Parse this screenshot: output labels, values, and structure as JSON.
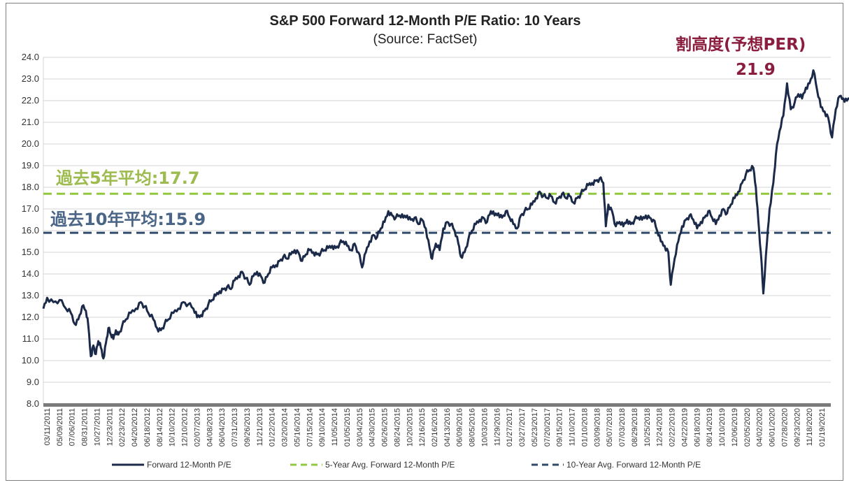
{
  "chart_data": {
    "type": "line",
    "title": "S&P 500 Forward 12-Month P/E Ratio: 10 Years",
    "subtitle": "(Source: FactSet)",
    "xlabel": "",
    "ylabel": "",
    "ylim": [
      8.0,
      24.0
    ],
    "y_ticks": [
      "24.0",
      "23.0",
      "22.0",
      "21.0",
      "20.0",
      "19.0",
      "18.0",
      "17.0",
      "16.0",
      "15.0",
      "14.0",
      "13.0",
      "12.0",
      "11.0",
      "10.0",
      "9.0",
      "8.0"
    ],
    "x_ticks": [
      "03/11/2011",
      "05/09/2011",
      "07/06/2011",
      "08/31/2011",
      "10/27/2011",
      "12/23/2011",
      "02/23/2012",
      "04/20/2012",
      "06/18/2012",
      "08/14/2012",
      "10/10/2012",
      "12/10/2012",
      "02/07/2013",
      "04/08/2013",
      "06/04/2013",
      "07/31/2013",
      "09/26/2013",
      "11/21/2013",
      "01/22/2014",
      "03/20/2014",
      "05/16/2014",
      "07/15/2014",
      "09/10/2014",
      "11/05/2014",
      "01/05/2015",
      "03/04/2015",
      "04/30/2015",
      "06/26/2015",
      "08/24/2015",
      "10/20/2015",
      "12/16/2015",
      "02/16/2016",
      "04/13/2016",
      "06/09/2016",
      "08/05/2016",
      "10/03/2016",
      "11/29/2016",
      "01/27/2017",
      "03/27/2017",
      "05/23/2017",
      "07/20/2017",
      "09/15/2017",
      "11/10/2017",
      "01/10/2018",
      "03/09/2018",
      "05/07/2018",
      "07/03/2018",
      "08/29/2018",
      "10/25/2018",
      "12/24/2018",
      "02/22/2019",
      "04/22/2019",
      "06/18/2019",
      "08/14/2019",
      "10/10/2019",
      "12/06/2019",
      "02/05/2020",
      "04/02/2020",
      "06/01/2020",
      "07/28/2020",
      "09/23/2020",
      "11/18/2020",
      "01/19/2021"
    ],
    "grid": true,
    "legend_position": "bottom",
    "series": [
      {
        "name": "Forward 12-Month P/E",
        "color": "#1c2a4a",
        "style": "solid",
        "points": [
          [
            0,
            12.4
          ],
          [
            0.3,
            12.9
          ],
          [
            0.8,
            12.7
          ],
          [
            1.3,
            12.8
          ],
          [
            1.8,
            12.4
          ],
          [
            2.2,
            12.2
          ],
          [
            2.5,
            11.7
          ],
          [
            2.8,
            11.9
          ],
          [
            3.1,
            12.5
          ],
          [
            3.4,
            12.3
          ],
          [
            3.6,
            11.6
          ],
          [
            3.8,
            10.2
          ],
          [
            4.0,
            10.7
          ],
          [
            4.2,
            10.3
          ],
          [
            4.4,
            10.9
          ],
          [
            4.6,
            10.6
          ],
          [
            4.8,
            10.1
          ],
          [
            5.0,
            10.8
          ],
          [
            5.2,
            11.5
          ],
          [
            5.4,
            11.2
          ],
          [
            5.6,
            11.0
          ],
          [
            5.8,
            11.4
          ],
          [
            6.0,
            11.2
          ],
          [
            6.3,
            11.6
          ],
          [
            6.6,
            11.9
          ],
          [
            7.0,
            12.2
          ],
          [
            7.4,
            12.4
          ],
          [
            7.8,
            12.7
          ],
          [
            8.1,
            12.5
          ],
          [
            8.4,
            12.2
          ],
          [
            8.8,
            11.9
          ],
          [
            9.1,
            11.5
          ],
          [
            9.4,
            11.4
          ],
          [
            9.7,
            11.7
          ],
          [
            10.0,
            11.9
          ],
          [
            10.4,
            12.2
          ],
          [
            10.8,
            12.4
          ],
          [
            11.2,
            12.7
          ],
          [
            11.6,
            12.6
          ],
          [
            12.0,
            12.4
          ],
          [
            12.3,
            12.0
          ],
          [
            12.6,
            12.1
          ],
          [
            12.9,
            12.3
          ],
          [
            13.2,
            12.6
          ],
          [
            13.5,
            12.8
          ],
          [
            13.8,
            13.0
          ],
          [
            14.1,
            13.2
          ],
          [
            14.4,
            13.3
          ],
          [
            14.7,
            13.4
          ],
          [
            15.0,
            13.3
          ],
          [
            15.3,
            13.7
          ],
          [
            15.6,
            13.9
          ],
          [
            15.9,
            14.1
          ],
          [
            16.2,
            13.8
          ],
          [
            16.5,
            13.5
          ],
          [
            16.8,
            13.9
          ],
          [
            17.1,
            14.1
          ],
          [
            17.4,
            13.9
          ],
          [
            17.7,
            13.6
          ],
          [
            18.0,
            14.0
          ],
          [
            18.3,
            14.3
          ],
          [
            18.6,
            14.4
          ],
          [
            18.9,
            14.6
          ],
          [
            19.2,
            14.8
          ],
          [
            19.5,
            14.7
          ],
          [
            19.8,
            14.9
          ],
          [
            20.1,
            15.1
          ],
          [
            20.4,
            15.0
          ],
          [
            20.7,
            14.6
          ],
          [
            21.0,
            14.9
          ],
          [
            21.3,
            15.1
          ],
          [
            21.6,
            15.0
          ],
          [
            21.9,
            14.9
          ],
          [
            22.2,
            15.0
          ],
          [
            22.5,
            15.1
          ],
          [
            22.8,
            15.2
          ],
          [
            23.1,
            15.3
          ],
          [
            23.4,
            15.2
          ],
          [
            23.7,
            15.4
          ],
          [
            24.0,
            15.5
          ],
          [
            24.3,
            15.3
          ],
          [
            24.6,
            15.1
          ],
          [
            24.9,
            15.4
          ],
          [
            25.2,
            15.0
          ],
          [
            25.5,
            14.3
          ],
          [
            25.8,
            15.0
          ],
          [
            26.1,
            15.5
          ],
          [
            26.4,
            15.8
          ],
          [
            26.7,
            15.7
          ],
          [
            27.0,
            16.1
          ],
          [
            27.3,
            16.4
          ],
          [
            27.6,
            16.9
          ],
          [
            27.9,
            16.7
          ],
          [
            28.2,
            16.6
          ],
          [
            28.5,
            16.7
          ],
          [
            28.8,
            16.6
          ],
          [
            29.1,
            16.7
          ],
          [
            29.4,
            16.5
          ],
          [
            29.7,
            16.6
          ],
          [
            30.0,
            16.3
          ],
          [
            30.3,
            16.5
          ],
          [
            30.6,
            16.1
          ],
          [
            30.9,
            15.2
          ],
          [
            31.1,
            14.7
          ],
          [
            31.4,
            15.4
          ],
          [
            31.7,
            15.1
          ],
          [
            32.0,
            16.1
          ],
          [
            32.3,
            16.4
          ],
          [
            32.6,
            16.3
          ],
          [
            32.9,
            16.0
          ],
          [
            33.2,
            15.4
          ],
          [
            33.4,
            14.8
          ],
          [
            33.7,
            15.0
          ],
          [
            34.0,
            15.6
          ],
          [
            34.3,
            16.0
          ],
          [
            34.6,
            16.3
          ],
          [
            34.9,
            16.5
          ],
          [
            35.2,
            16.6
          ],
          [
            35.5,
            16.4
          ],
          [
            35.8,
            16.9
          ],
          [
            36.1,
            16.7
          ],
          [
            36.4,
            16.8
          ],
          [
            36.7,
            16.6
          ],
          [
            37.0,
            16.9
          ],
          [
            37.3,
            16.6
          ],
          [
            37.6,
            16.3
          ],
          [
            37.9,
            16.1
          ],
          [
            38.2,
            16.7
          ],
          [
            38.5,
            16.9
          ],
          [
            38.8,
            17.0
          ],
          [
            39.1,
            17.2
          ],
          [
            39.4,
            17.5
          ],
          [
            39.7,
            17.8
          ],
          [
            40.0,
            17.6
          ],
          [
            40.3,
            17.5
          ],
          [
            40.6,
            17.6
          ],
          [
            40.9,
            17.3
          ],
          [
            41.2,
            17.5
          ],
          [
            41.5,
            17.7
          ],
          [
            41.8,
            17.5
          ],
          [
            42.1,
            17.6
          ],
          [
            42.4,
            17.3
          ],
          [
            42.7,
            17.5
          ],
          [
            43.0,
            17.7
          ],
          [
            43.3,
            17.9
          ],
          [
            43.6,
            18.1
          ],
          [
            43.9,
            18.2
          ],
          [
            44.2,
            18.3
          ],
          [
            44.5,
            18.4
          ],
          [
            44.8,
            18.2
          ],
          [
            45.0,
            16.2
          ],
          [
            45.2,
            17.2
          ],
          [
            45.5,
            16.9
          ],
          [
            45.8,
            16.2
          ],
          [
            46.1,
            16.4
          ],
          [
            46.4,
            16.2
          ],
          [
            46.7,
            16.5
          ],
          [
            47.0,
            16.3
          ],
          [
            47.3,
            16.5
          ],
          [
            47.6,
            16.6
          ],
          [
            47.9,
            16.5
          ],
          [
            48.2,
            16.7
          ],
          [
            48.5,
            16.6
          ],
          [
            48.8,
            16.5
          ],
          [
            49.1,
            16.0
          ],
          [
            49.4,
            15.5
          ],
          [
            49.7,
            15.3
          ],
          [
            50.0,
            15.0
          ],
          [
            50.2,
            13.5
          ],
          [
            50.5,
            14.7
          ],
          [
            50.8,
            15.5
          ],
          [
            51.1,
            16.2
          ],
          [
            51.4,
            16.5
          ],
          [
            51.7,
            16.7
          ],
          [
            52.0,
            16.5
          ],
          [
            52.3,
            16.1
          ],
          [
            52.6,
            16.4
          ],
          [
            52.9,
            16.6
          ],
          [
            53.2,
            16.9
          ],
          [
            53.5,
            16.6
          ],
          [
            53.8,
            16.3
          ],
          [
            54.1,
            16.7
          ],
          [
            54.4,
            17.0
          ],
          [
            54.7,
            16.8
          ],
          [
            55.0,
            17.2
          ],
          [
            55.3,
            17.5
          ],
          [
            55.6,
            17.8
          ],
          [
            55.9,
            18.2
          ],
          [
            56.2,
            18.6
          ],
          [
            56.5,
            18.8
          ],
          [
            56.8,
            18.9
          ],
          [
            57.0,
            18.0
          ],
          [
            57.2,
            16.5
          ],
          [
            57.4,
            15.0
          ],
          [
            57.6,
            13.1
          ],
          [
            57.9,
            15.5
          ],
          [
            58.1,
            17.0
          ],
          [
            58.4,
            18.2
          ],
          [
            58.6,
            19.5
          ],
          [
            58.9,
            20.6
          ],
          [
            59.2,
            21.3
          ],
          [
            59.5,
            22.8
          ],
          [
            59.8,
            21.6
          ],
          [
            60.1,
            21.9
          ],
          [
            60.4,
            22.3
          ],
          [
            60.7,
            22.1
          ],
          [
            61.0,
            22.6
          ],
          [
            61.3,
            22.8
          ],
          [
            61.6,
            23.4
          ],
          [
            61.9,
            22.5
          ],
          [
            62.2,
            21.7
          ],
          [
            62.5,
            21.5
          ],
          [
            62.8,
            21.2
          ],
          [
            63.1,
            20.3
          ],
          [
            63.4,
            21.6
          ],
          [
            63.7,
            22.2
          ],
          [
            64.0,
            22.1
          ],
          [
            64.3,
            22.0
          ],
          [
            64.6,
            22.3
          ],
          [
            64.9,
            22.1
          ],
          [
            65.2,
            22.4
          ],
          [
            65.5,
            22.6
          ],
          [
            65.8,
            22.3
          ],
          [
            66.1,
            22.2
          ],
          [
            66.4,
            21.4
          ],
          [
            66.7,
            21.9
          ],
          [
            67.0,
            22.0
          ],
          [
            67.3,
            21.1
          ],
          [
            67.6,
            21.9
          ]
        ]
      },
      {
        "name": "5-Year Avg. Forward 12-Month P/E",
        "color": "#92c83e",
        "style": "dashed",
        "value": 17.7
      },
      {
        "name": "10-Year Avg. Forward 12-Month P/E",
        "color": "#2f4a6b",
        "style": "dashed",
        "value": 15.9
      }
    ],
    "annotations": [
      {
        "text": "過去5年平均:17.7",
        "color": "#9dbb4e"
      },
      {
        "text": "過去10年平均:15.9",
        "color": "#4a6585"
      },
      {
        "text": "割高度(予想PER)",
        "color": "#8b1e3f"
      },
      {
        "text": "21.9",
        "color": "#8b1e3f"
      }
    ]
  }
}
